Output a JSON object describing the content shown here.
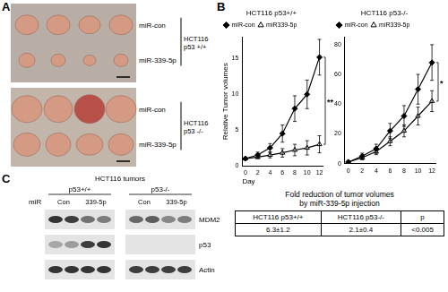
{
  "panels": {
    "a": "A",
    "b": "B",
    "c": "C"
  },
  "panel_a": {
    "groups": [
      {
        "cell_line": [
          "HCT116",
          "p53 +/+"
        ],
        "rows": [
          "miR-con",
          "miR-339-5p"
        ]
      },
      {
        "cell_line": [
          "HCT116",
          "p53 -/-"
        ],
        "rows": [
          "miR-con",
          "miR-339-5p"
        ]
      }
    ]
  },
  "chart_data": [
    {
      "type": "line",
      "title": "HCT116 p53+/+",
      "x_label": "Day",
      "y_label": "Relative Tumor volumes",
      "x": [
        0,
        2,
        4,
        6,
        8,
        10,
        12
      ],
      "xlim": [
        -0.5,
        12.5
      ],
      "xticks": [
        0,
        2,
        4,
        6,
        8,
        10,
        12
      ],
      "ylim": [
        0,
        18
      ],
      "yticks": [
        0,
        5,
        10,
        15
      ],
      "grid": false,
      "legend": "upper left",
      "annotation": "**",
      "series": [
        {
          "name": "miR-con",
          "color": "#000000",
          "marker": "filled_diamond",
          "values": [
            1,
            1.5,
            2.5,
            4.5,
            8,
            10,
            15.2
          ],
          "errors": [
            0.2,
            0.4,
            0.6,
            1.2,
            1.8,
            2,
            2.5
          ]
        },
        {
          "name": "miR339-5p",
          "color": "#000000",
          "marker": "open_triangle",
          "values": [
            1,
            1.2,
            1.5,
            1.8,
            2.2,
            2.5,
            3
          ],
          "errors": [
            0.1,
            0.2,
            0.4,
            0.6,
            0.8,
            1,
            1.2
          ]
        }
      ]
    },
    {
      "type": "line",
      "title": "HCT116 p53-/-",
      "x": [
        0,
        2,
        4,
        6,
        8,
        10,
        12
      ],
      "xlim": [
        -0.5,
        12.5
      ],
      "xticks": [
        0,
        2,
        4,
        6,
        8,
        10,
        12
      ],
      "ylim": [
        0,
        85
      ],
      "yticks": [
        0,
        20,
        40,
        60,
        80
      ],
      "grid": false,
      "legend": "upper left",
      "annotation": "*",
      "series": [
        {
          "name": "miR-con",
          "color": "#000000",
          "marker": "filled_diamond",
          "values": [
            1,
            5,
            10,
            22,
            32,
            50,
            68
          ],
          "errors": [
            0.5,
            2,
            3,
            5,
            7,
            10,
            12
          ]
        },
        {
          "name": "miR339-5p",
          "color": "#000000",
          "marker": "open_triangle",
          "values": [
            1,
            4,
            8,
            15,
            22,
            32,
            42
          ],
          "errors": [
            0.5,
            1.5,
            2,
            3,
            4,
            6,
            7
          ]
        }
      ]
    }
  ],
  "table": {
    "title_lines": [
      "Fold reduction of tumor volumes",
      "by miR-339-5p injection"
    ],
    "header": [
      "HCT116 p53+/+",
      "HCT116 p53-/-",
      "p"
    ],
    "rows": [
      [
        "6.3±1.2",
        "2.1±0.4",
        "<0.005"
      ]
    ]
  },
  "panel_c": {
    "title": "HCT116 tumors",
    "groups": [
      "p53+/+",
      "p53-/-"
    ],
    "mir_label": "miR",
    "lane_labels": [
      "Con",
      "339-5p",
      "Con",
      "339-5p"
    ],
    "rows": [
      "MDM2",
      "p53",
      "Actin"
    ]
  }
}
